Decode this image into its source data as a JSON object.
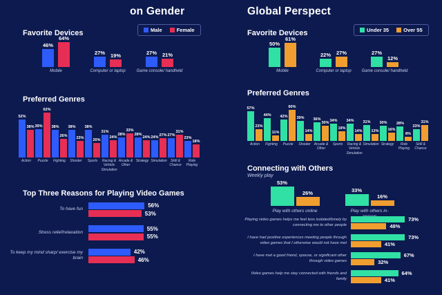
{
  "colors": {
    "background": "#0d1a4f",
    "male": "#2e5bfc",
    "female": "#e72e54",
    "under35": "#30e0a4",
    "over55": "#f09e2f",
    "text": "#ffffff",
    "muted_label": "#c8d2f0",
    "legend_border": "#4d5d9d"
  },
  "header": {
    "left_title": "on Gender",
    "right_title": "Global Perspect"
  },
  "legends": {
    "gender": [
      {
        "label": "Male",
        "color": "#2e5bfc"
      },
      {
        "label": "Female",
        "color": "#e72e54"
      }
    ],
    "age": [
      {
        "label": "Under 35",
        "color": "#30e0a4"
      },
      {
        "label": "Over 55",
        "color": "#f09e2f"
      }
    ]
  },
  "chart_data": [
    {
      "id": "gender_favorite_devices",
      "type": "bar",
      "title": "Favorite Devices",
      "categories": [
        "Mobile",
        "Computer or laptop",
        "Game console/ handheld"
      ],
      "series": [
        {
          "name": "Male",
          "color": "#2e5bfc",
          "values": [
            46,
            27,
            27
          ]
        },
        {
          "name": "Female",
          "color": "#e72e54",
          "values": [
            64,
            19,
            21
          ]
        }
      ],
      "ylim": [
        0,
        100
      ],
      "grid": false,
      "legend_position": "top-right"
    },
    {
      "id": "gender_preferred_genres",
      "type": "bar",
      "title": "Preferred Genres",
      "categories": [
        "Action",
        "Puzzle",
        "Fighting",
        "Shooter",
        "Sports",
        "Racing & Vehicle Simulation",
        "Arcade & Other",
        "Strategy",
        "Simulation",
        "Skill & Chance",
        "Role Playing"
      ],
      "series": [
        {
          "name": "Male",
          "color": "#2e5bfc",
          "values": [
            52,
            39,
            38,
            38,
            38,
            31,
            28,
            28,
            24,
            27,
            23
          ]
        },
        {
          "name": "Female",
          "color": "#e72e54",
          "values": [
            38,
            62,
            26,
            23,
            20,
            24,
            33,
            24,
            27,
            31,
            18
          ]
        }
      ],
      "ylim": [
        0,
        100
      ],
      "grid": false
    },
    {
      "id": "gender_top_reasons",
      "type": "bar",
      "orientation": "horizontal",
      "title": "Top Three Reasons for Playing Video Games",
      "categories": [
        "To have fun",
        "Stress relief/relaxation",
        "To keep my mind sharp/ exercise my brain"
      ],
      "series": [
        {
          "name": "Male",
          "color": "#2e5bfc",
          "values": [
            56,
            55,
            42
          ]
        },
        {
          "name": "Female",
          "color": "#e72e54",
          "values": [
            53,
            55,
            46
          ]
        }
      ],
      "xlim": [
        0,
        100
      ],
      "grid": false
    },
    {
      "id": "age_favorite_devices",
      "type": "bar",
      "title": "Favorite Devices",
      "categories": [
        "Mobile",
        "Computer or laptop",
        "Game console/ handheld"
      ],
      "series": [
        {
          "name": "Under 35",
          "color": "#30e0a4",
          "values": [
            50,
            22,
            27
          ]
        },
        {
          "name": "Over 55",
          "color": "#f09e2f",
          "values": [
            61,
            27,
            12
          ]
        }
      ],
      "ylim": [
        0,
        100
      ],
      "grid": false,
      "legend_position": "top-right"
    },
    {
      "id": "age_preferred_genres",
      "type": "bar",
      "title": "Preferred Genres",
      "categories": [
        "Action",
        "Fighting",
        "Puzzle",
        "Shooter",
        "Arcade & Other",
        "Sports",
        "Racing & Vehicle Simulation",
        "Simulation",
        "Strategy",
        "Role Playing",
        "Skill & Chance"
      ],
      "series": [
        {
          "name": "Under 35",
          "color": "#30e0a4",
          "values": [
            57,
            44,
            42,
            39,
            36,
            34,
            34,
            31,
            30,
            28,
            23
          ]
        },
        {
          "name": "Over 55",
          "color": "#f09e2f",
          "values": [
            23,
            11,
            60,
            14,
            30,
            19,
            14,
            13,
            16,
            8,
            31
          ]
        }
      ],
      "ylim": [
        0,
        100
      ],
      "grid": false
    },
    {
      "id": "age_connecting_weekly",
      "type": "bar",
      "title": "Connecting with Others",
      "subtitle": "Weekly play",
      "categories": [
        "Play with others online",
        "Play with others in-person"
      ],
      "series": [
        {
          "name": "Under 35",
          "color": "#30e0a4",
          "values": [
            53,
            33
          ]
        },
        {
          "name": "Over 55",
          "color": "#f09e2f",
          "values": [
            26,
            16
          ]
        }
      ],
      "ylim": [
        0,
        100
      ],
      "grid": false
    },
    {
      "id": "age_connecting_statements",
      "type": "bar",
      "orientation": "horizontal",
      "title": "",
      "categories": [
        "Playing video games helps me feel less isolated/lonely by connecting me to other people",
        "I have had positive experiences meeting people through video games that I otherwise would not have met",
        "I have met a good friend, spouse, or significant other through video games",
        "Video games help me stay connected with friends and family"
      ],
      "series": [
        {
          "name": "Under 35",
          "color": "#30e0a4",
          "values": [
            73,
            73,
            67,
            64
          ]
        },
        {
          "name": "Over 55",
          "color": "#f09e2f",
          "values": [
            48,
            41,
            32,
            41
          ]
        }
      ],
      "xlim": [
        0,
        100
      ],
      "grid": false
    }
  ]
}
